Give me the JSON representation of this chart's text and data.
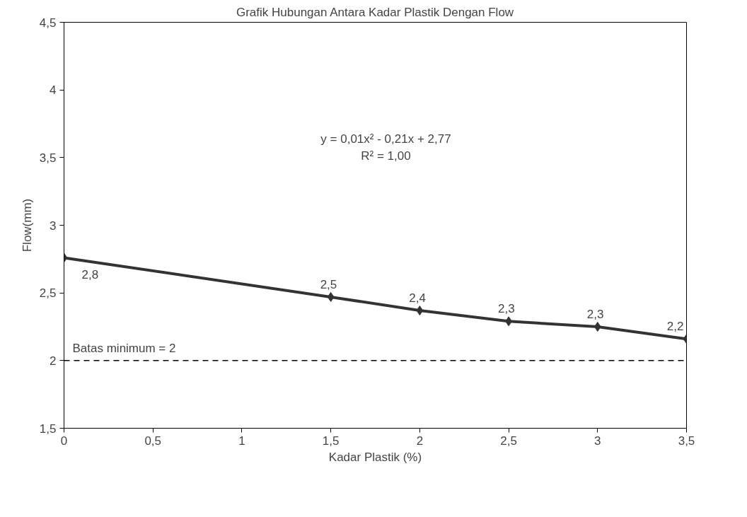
{
  "chart_data": {
    "type": "line",
    "title": "Grafik Hubungan Antara Kadar Plastik Dengan Flow",
    "xlabel": "Kadar Plastik (%)",
    "ylabel": "Flow(mm)",
    "x": [
      0,
      1.5,
      2,
      2.5,
      3,
      3.5
    ],
    "series": [
      {
        "color": "#333333",
        "values": [
          2.76,
          2.47,
          2.37,
          2.29,
          2.25,
          2.16
        ],
        "value_labels": [
          "2,8",
          "2,5",
          "2,4",
          "2,3",
          "2,3",
          "2,2"
        ]
      }
    ],
    "xlim": [
      0,
      3.5
    ],
    "ylim": [
      1.5,
      4.5
    ],
    "xticks": [
      0,
      {
        "value": 0.5,
        "label": "0,5"
      },
      1,
      {
        "value": 1.5,
        "label": "1,5"
      },
      2,
      {
        "value": 2.5,
        "label": "2,5"
      },
      3,
      {
        "value": 3.5,
        "label": "3,5"
      }
    ],
    "yticks": [
      {
        "value": 1.5,
        "label": "1,5"
      },
      2,
      {
        "value": 2.5,
        "label": "2,5"
      },
      3,
      {
        "value": 3.5,
        "label": "3,5"
      },
      4,
      {
        "value": 4.5,
        "label": "4,5"
      }
    ],
    "ref_lines": [
      {
        "axis": "y",
        "value": 2,
        "label": "Batas minimum = 2",
        "color": "#000000",
        "line_style": "dashed"
      }
    ],
    "annotations": [
      "y = 0,01x² - 0,21x + 2,77",
      "R² = 1,00"
    ],
    "grid": false,
    "marker": "diamond",
    "line_style": "solid"
  }
}
